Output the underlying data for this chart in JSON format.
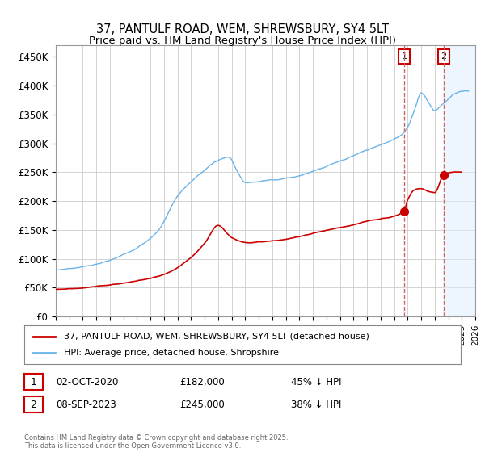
{
  "title1": "37, PANTULF ROAD, WEM, SHREWSBURY, SY4 5LT",
  "title2": "Price paid vs. HM Land Registry's House Price Index (HPI)",
  "hpi_color": "#6ab4e8",
  "price_color": "#cc0000",
  "background_color": "#ffffff",
  "grid_color": "#cccccc",
  "annotation1_value": 182000,
  "annotation1_year": 2020.75,
  "annotation2_value": 245000,
  "annotation2_year": 2023.67,
  "annotation1_date": "02-OCT-2020",
  "annotation1_price": "£182,000",
  "annotation1_text": "45% ↓ HPI",
  "annotation2_date": "08-SEP-2023",
  "annotation2_price": "£245,000",
  "annotation2_text": "38% ↓ HPI",
  "legend_label1": "37, PANTULF ROAD, WEM, SHREWSBURY, SY4 5LT (detached house)",
  "legend_label2": "HPI: Average price, detached house, Shropshire",
  "footer": "Contains HM Land Registry data © Crown copyright and database right 2025.\nThis data is licensed under the Open Government Licence v3.0.",
  "ylim": [
    0,
    470000
  ],
  "yticks": [
    0,
    50000,
    100000,
    150000,
    200000,
    250000,
    300000,
    350000,
    400000,
    450000
  ],
  "ytick_labels": [
    "£0",
    "£50K",
    "£100K",
    "£150K",
    "£200K",
    "£250K",
    "£300K",
    "£350K",
    "£400K",
    "£450K"
  ],
  "xmin": 1995,
  "xmax": 2026,
  "shade_color": "#ddeeff",
  "dashed_color": "#cc6666"
}
